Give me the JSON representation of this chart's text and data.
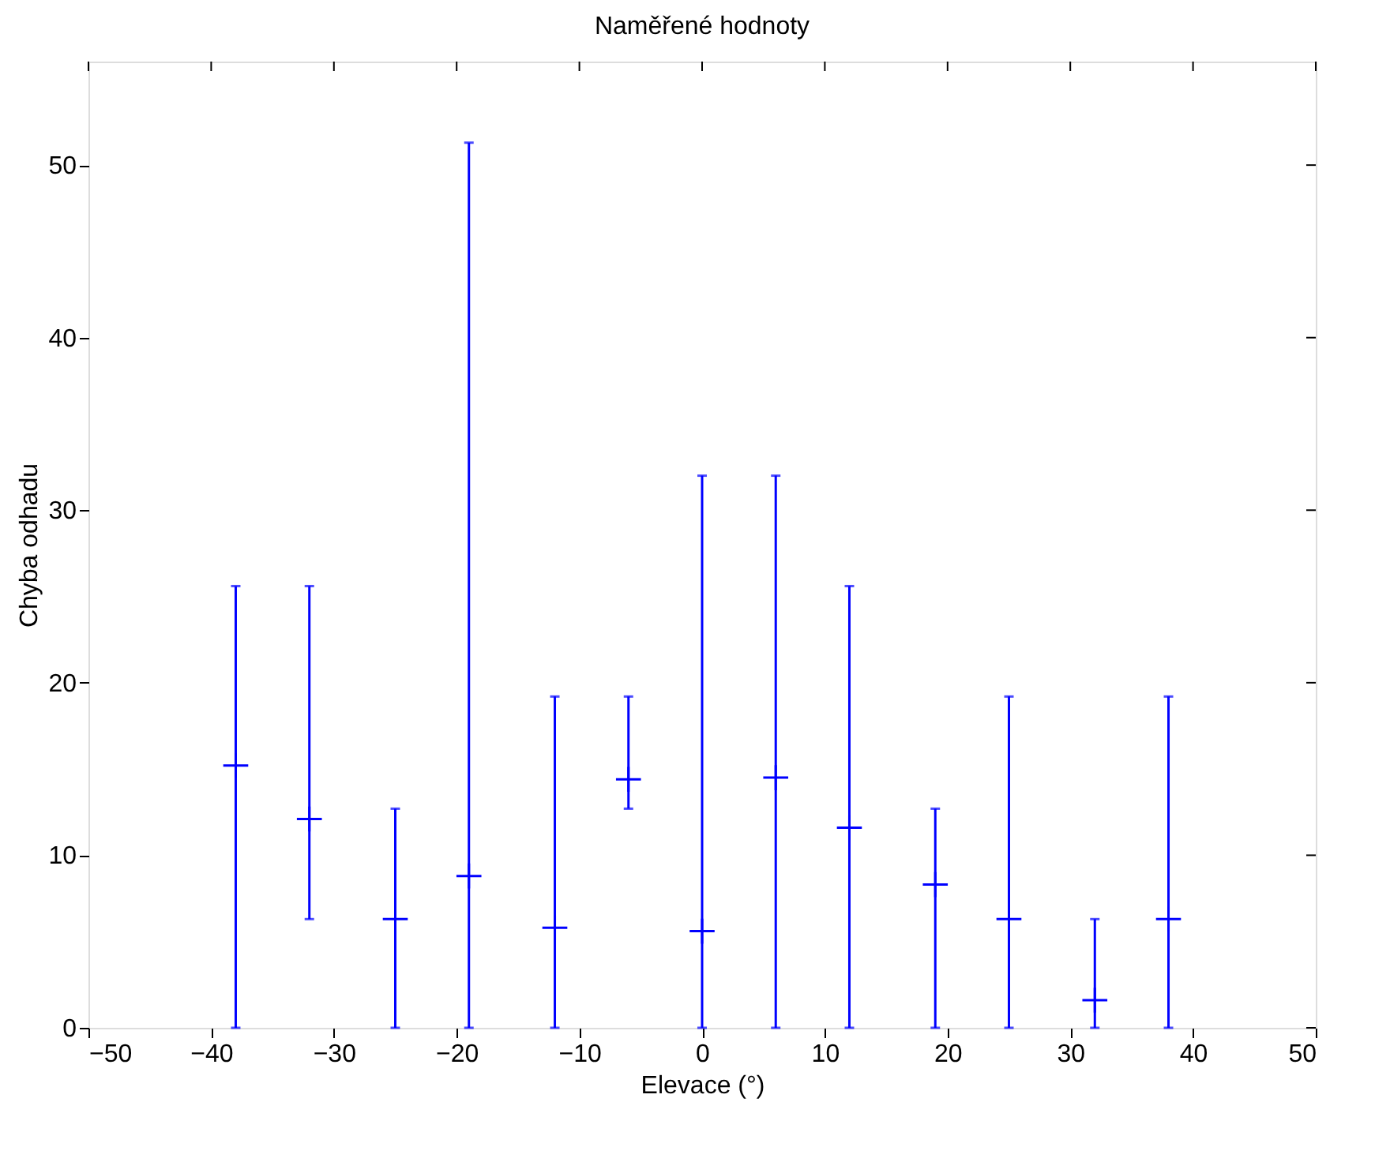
{
  "chart_data": {
    "type": "scatter",
    "title": "Naměřené hodnoty",
    "xlabel": "Elevace (°)",
    "ylabel": "Chyba odhadu",
    "x": [
      -38,
      -32,
      -25,
      -19,
      -12,
      -6,
      0,
      6,
      12,
      19,
      25,
      32,
      38
    ],
    "series": [
      {
        "color": "#0000ff",
        "values": [
          15.2,
          12.1,
          6.3,
          8.8,
          5.8,
          14.4,
          5.6,
          14.5,
          11.6,
          8.3,
          6.3,
          1.6,
          6.3
        ],
        "errors": [
          [
            0,
            25.6
          ],
          [
            6.3,
            25.6
          ],
          [
            0,
            12.7
          ],
          [
            0,
            51.3
          ],
          [
            0,
            19.2
          ],
          [
            12.7,
            19.2
          ],
          [
            0,
            32.0
          ],
          [
            0,
            32.0
          ],
          [
            0,
            25.6
          ],
          [
            0,
            12.7
          ],
          [
            0,
            19.2
          ],
          [
            0,
            6.3
          ],
          [
            0,
            19.2
          ]
        ]
      }
    ],
    "xlim": [
      -50,
      50
    ],
    "xticks": [
      -50,
      -40,
      -30,
      -20,
      -10,
      0,
      10,
      20,
      30,
      40,
      50
    ],
    "ylim": [
      0,
      56
    ],
    "yticks": [
      0,
      10,
      20,
      30,
      40,
      50
    ],
    "grid": false,
    "marker": "cross"
  }
}
